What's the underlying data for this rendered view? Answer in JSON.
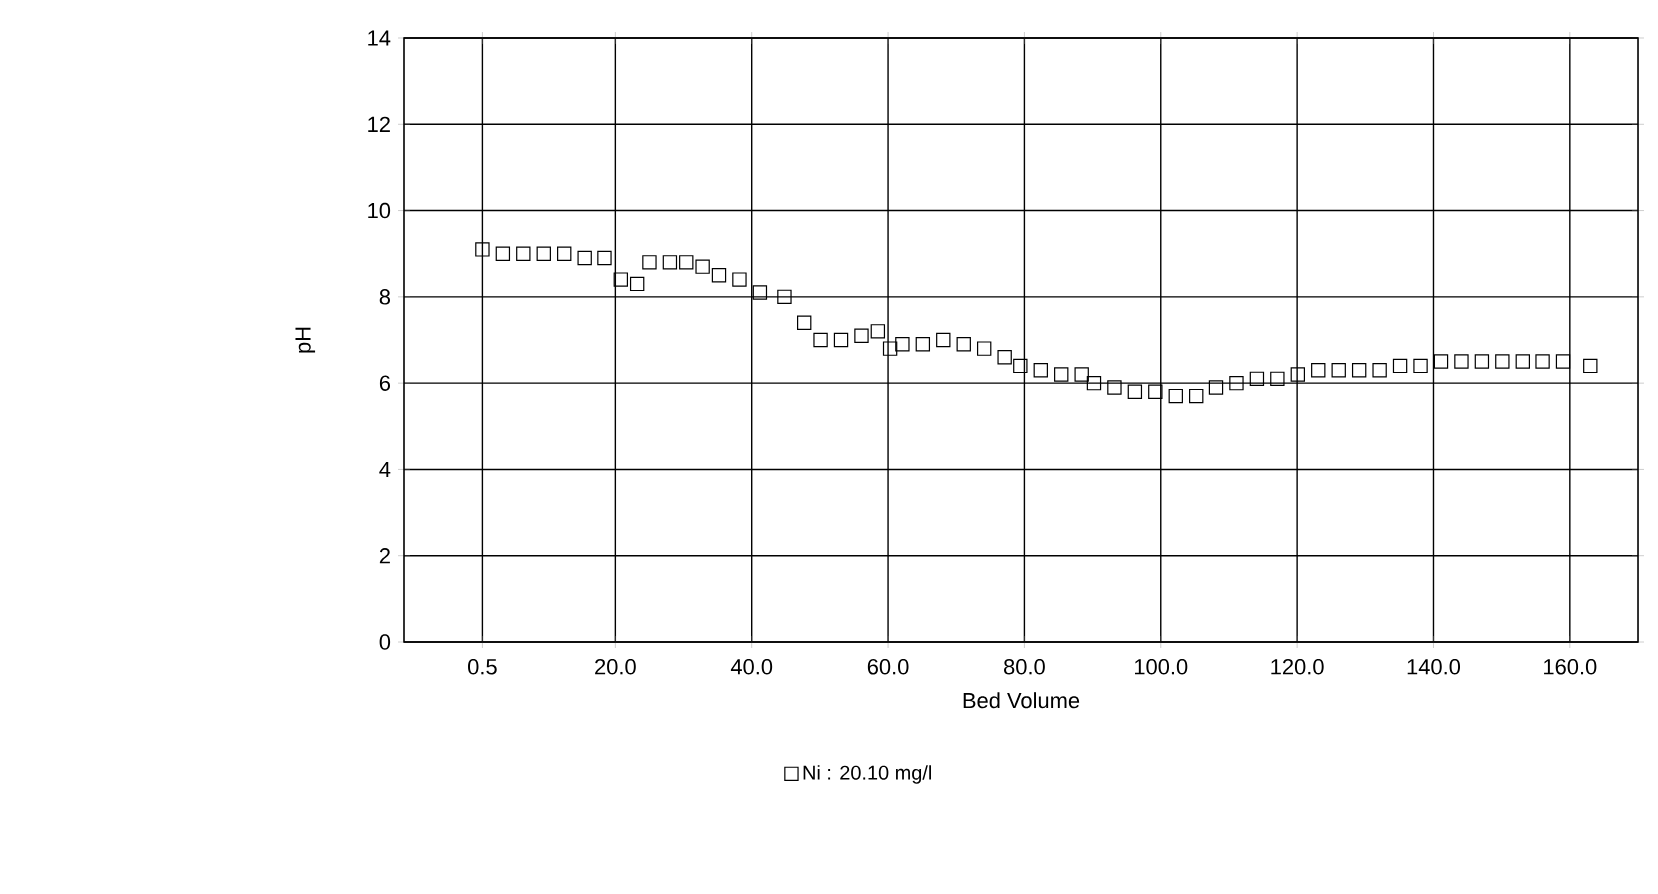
{
  "chart_data": {
    "type": "scatter",
    "xlabel": "Bed Volume",
    "ylabel": "pH",
    "xlim": [
      -11,
      170
    ],
    "ylim": [
      0,
      14
    ],
    "xticks": [
      0.5,
      {
        "value": 20,
        "label": "20.0"
      },
      {
        "value": 40,
        "label": "40.0"
      },
      {
        "value": 60,
        "label": "60.0"
      },
      {
        "value": 80,
        "label": "80.0"
      },
      {
        "value": 100,
        "label": "100.0"
      },
      {
        "value": 120,
        "label": "120.0"
      },
      {
        "value": 140,
        "label": "140.0"
      },
      {
        "value": 160,
        "label": "160.0"
      }
    ],
    "yticks": [
      0,
      2,
      4,
      6,
      8,
      10,
      12,
      14
    ],
    "grid": true,
    "legend": "bottom",
    "marker": "square",
    "series": [
      {
        "name": "Ni : 20.10 mg/l",
        "color": "#000000",
        "x": [
          0.5,
          3.5,
          6.5,
          9.5,
          12.5,
          15.5,
          18.4,
          20.8,
          23.2,
          25.0,
          28.0,
          30.4,
          32.8,
          35.2,
          38.2,
          41.2,
          44.8,
          47.7,
          50.1,
          53.1,
          56.1,
          58.5,
          60.3,
          62.1,
          65.1,
          68.1,
          71.1,
          74.1,
          77.1,
          79.4,
          82.4,
          85.4,
          88.4,
          90.2,
          93.2,
          96.2,
          99.2,
          102.2,
          105.2,
          108.1,
          111.1,
          114.1,
          117.1,
          120.1,
          123.1,
          126.1,
          129.1,
          132.1,
          135.1,
          138.1,
          141.1,
          144.1,
          147.1,
          150.1,
          153.1,
          156.0,
          159.0,
          163.0
        ],
        "values": [
          9.1,
          9.0,
          9.0,
          9.0,
          9.0,
          8.9,
          8.9,
          8.4,
          8.3,
          8.8,
          8.8,
          8.8,
          8.7,
          8.5,
          8.4,
          8.1,
          8.0,
          7.4,
          7.0,
          7.0,
          7.1,
          7.2,
          6.8,
          6.9,
          6.9,
          7.0,
          6.9,
          6.8,
          6.6,
          6.4,
          6.3,
          6.2,
          6.2,
          6.0,
          5.9,
          5.8,
          5.8,
          5.7,
          5.7,
          5.9,
          6.0,
          6.1,
          6.1,
          6.2,
          6.3,
          6.3,
          6.3,
          6.3,
          6.4,
          6.4,
          6.5,
          6.5,
          6.5,
          6.5,
          6.5,
          6.5,
          6.5,
          6.4
        ]
      }
    ]
  }
}
